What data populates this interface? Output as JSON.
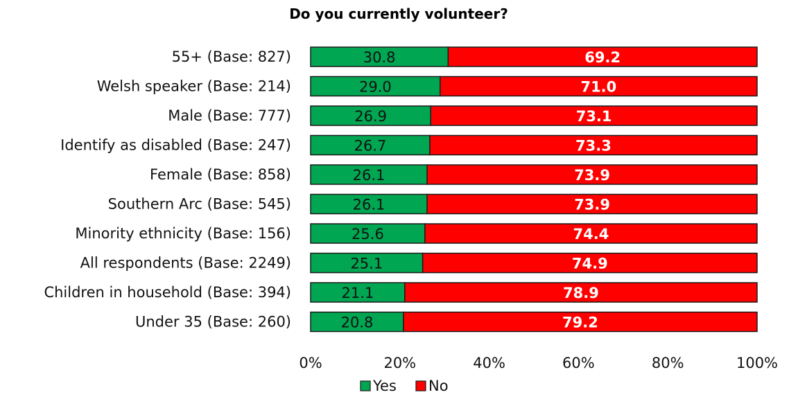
{
  "chart_data": {
    "type": "bar",
    "orientation": "horizontal",
    "stacked": true,
    "title": "Do you currently volunteer?",
    "categories": [
      "55+ (Base: 827)",
      "Welsh speaker (Base: 214)",
      "Male (Base: 777)",
      "Identify as disabled (Base: 247)",
      "Female (Base: 858)",
      "Southern Arc (Base: 545)",
      "Minority ethnicity (Base: 156)",
      "All respondents (Base: 2249)",
      "Children in household (Base: 394)",
      "Under 35 (Base: 260)"
    ],
    "series": [
      {
        "name": "Yes",
        "color": "#00a651",
        "values": [
          30.8,
          29.0,
          26.9,
          26.7,
          26.1,
          26.1,
          25.6,
          25.1,
          21.1,
          20.8
        ],
        "labels": [
          "30.8",
          "29.0",
          "26.9",
          "26.7",
          "26.1",
          "26.1",
          "25.6",
          "25.1",
          "21.1",
          "20.8"
        ]
      },
      {
        "name": "No",
        "color": "#ff0000",
        "values": [
          69.2,
          71.0,
          73.1,
          73.3,
          73.9,
          73.9,
          74.4,
          74.9,
          78.9,
          79.2
        ],
        "labels": [
          "69.2",
          "71.0",
          "73.1",
          "73.3",
          "73.9",
          "73.9",
          "74.4",
          "74.9",
          "78.9",
          "79.2"
        ]
      }
    ],
    "xlim": [
      0,
      100
    ],
    "x_ticks": [
      "0%",
      "20%",
      "40%",
      "60%",
      "80%",
      "100%"
    ],
    "grid": false,
    "legend": "bottom-center",
    "bar_outline_color": "#1a1a1a"
  }
}
